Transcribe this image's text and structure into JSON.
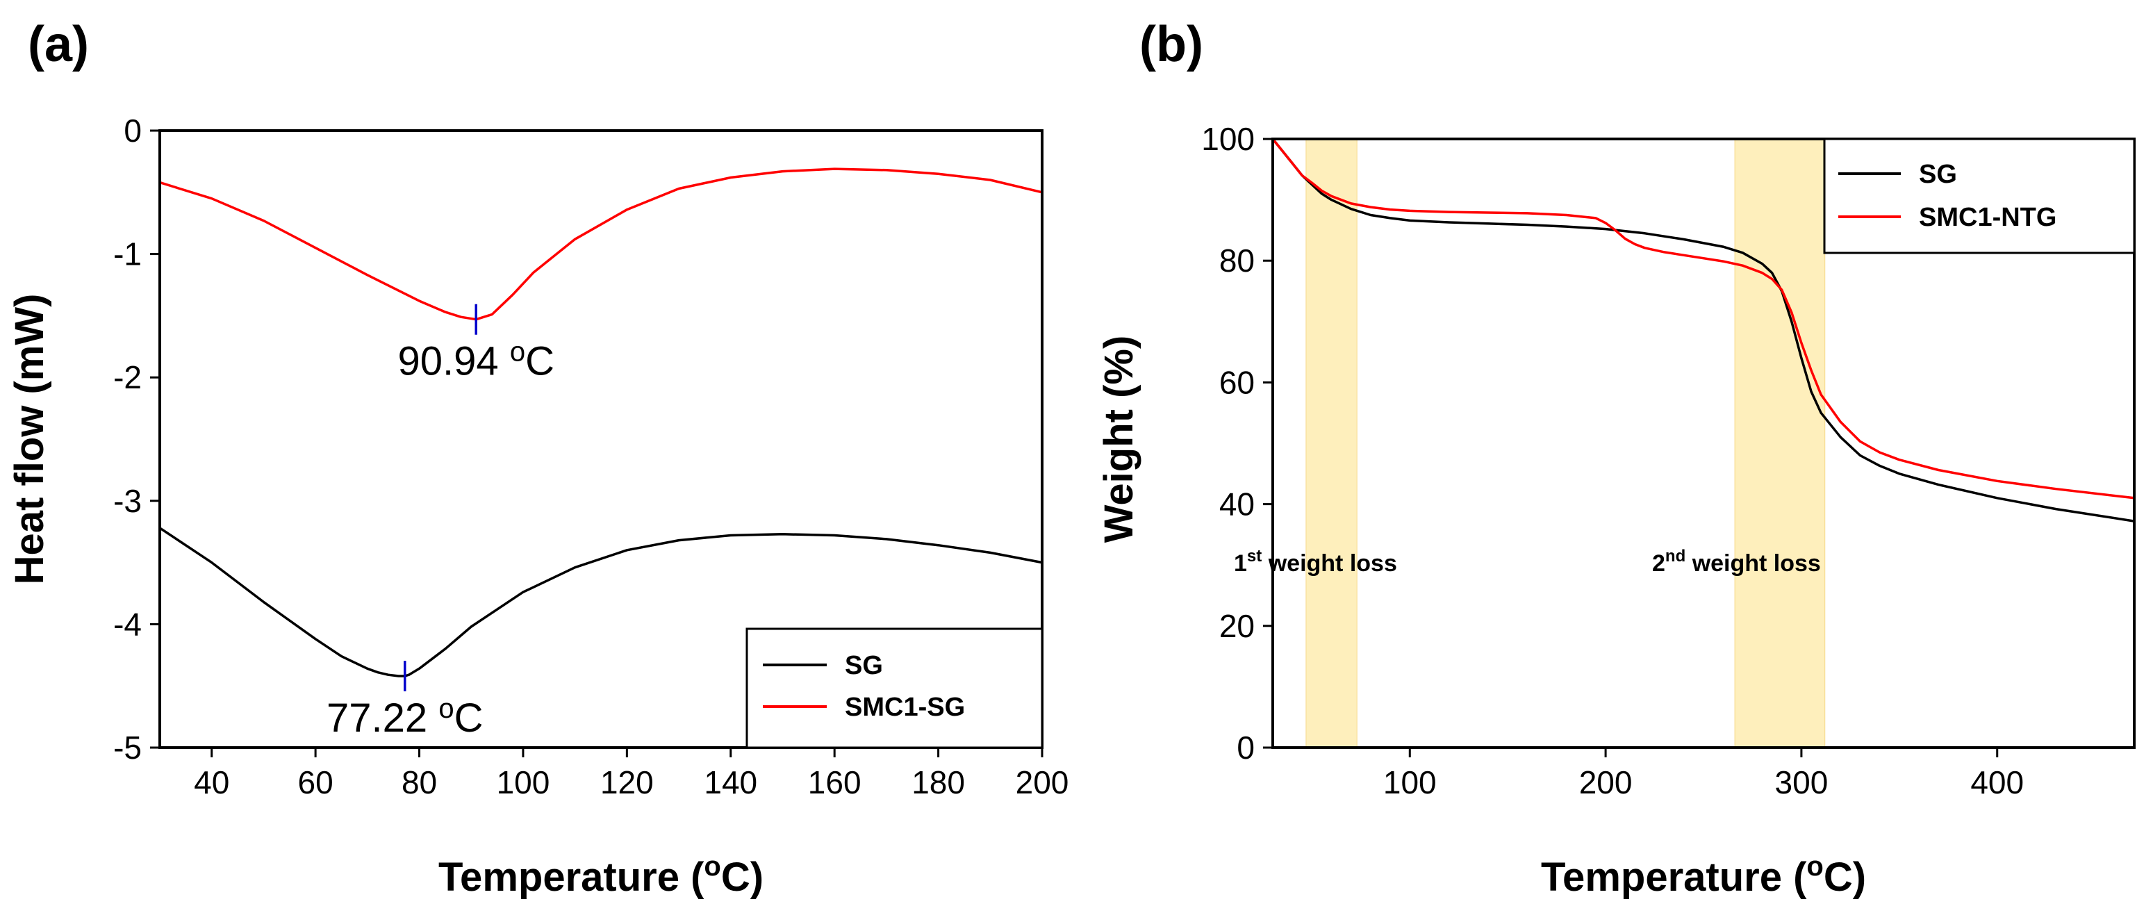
{
  "colors": {
    "black": "#000000",
    "red": "#ff0000",
    "marker": "#0000cc",
    "shade": "#fde9a6"
  },
  "chart_data": [
    {
      "panel_label": "(a)",
      "type": "line",
      "xlabel": "Temperature (oC)",
      "ylabel": "Heat flow (mW)",
      "xlim": [
        30,
        200
      ],
      "ylim": [
        -5,
        0
      ],
      "xticks": [
        "40",
        "60",
        "80",
        "100",
        "120",
        "140",
        "160",
        "180",
        "200"
      ],
      "yticks": [
        "0",
        "-1",
        "-2",
        "-3",
        "-4",
        "-5"
      ],
      "legend_position": "bottom-right",
      "series": [
        {
          "name": "SG",
          "color": "#000000",
          "x": [
            30,
            40,
            50,
            60,
            65,
            70,
            72,
            74,
            76,
            77.22,
            78,
            80,
            85,
            90,
            100,
            110,
            120,
            130,
            140,
            150,
            160,
            170,
            180,
            190,
            200
          ],
          "y": [
            -3.22,
            -3.5,
            -3.82,
            -4.12,
            -4.26,
            -4.36,
            -4.39,
            -4.41,
            -4.42,
            -4.42,
            -4.41,
            -4.36,
            -4.2,
            -4.02,
            -3.74,
            -3.54,
            -3.4,
            -3.32,
            -3.28,
            -3.27,
            -3.28,
            -3.31,
            -3.36,
            -3.42,
            -3.5
          ]
        },
        {
          "name": "SMC1-SG",
          "color": "#ff0000",
          "x": [
            30,
            40,
            50,
            60,
            70,
            80,
            85,
            88,
            90.94,
            94,
            98,
            102,
            110,
            120,
            130,
            140,
            150,
            160,
            170,
            180,
            190,
            200
          ],
          "y": [
            -0.42,
            -0.55,
            -0.73,
            -0.95,
            -1.17,
            -1.38,
            -1.47,
            -1.51,
            -1.53,
            -1.49,
            -1.33,
            -1.15,
            -0.88,
            -0.64,
            -0.47,
            -0.38,
            -0.33,
            -0.31,
            -0.32,
            -0.35,
            -0.4,
            -0.5
          ]
        }
      ],
      "annotations": [
        {
          "x": 90.94,
          "y": -1.53,
          "label": "90.94",
          "unit": "oC"
        },
        {
          "x": 77.22,
          "y": -4.42,
          "label": "77.22",
          "unit": "oC"
        }
      ]
    },
    {
      "panel_label": "(b)",
      "type": "line",
      "xlabel": "Temperature (oC)",
      "ylabel": "Weight (%)",
      "xlim": [
        30,
        470
      ],
      "ylim": [
        0,
        100
      ],
      "xticks": [
        "100",
        "200",
        "300",
        "400"
      ],
      "yticks": [
        "0",
        "20",
        "40",
        "60",
        "80",
        "100"
      ],
      "legend_position": "top-right",
      "series": [
        {
          "name": "SG",
          "color": "#000000",
          "x": [
            30,
            35,
            40,
            45,
            50,
            55,
            60,
            70,
            80,
            90,
            100,
            120,
            140,
            160,
            180,
            200,
            220,
            240,
            260,
            270,
            280,
            285,
            290,
            295,
            300,
            305,
            310,
            320,
            330,
            340,
            350,
            370,
            400,
            430,
            470
          ],
          "y": [
            100,
            98,
            96,
            94,
            92.5,
            91,
            90,
            88.5,
            87.5,
            87,
            86.6,
            86.3,
            86.1,
            85.9,
            85.6,
            85.2,
            84.5,
            83.5,
            82.3,
            81.3,
            79.5,
            78,
            75,
            70,
            64,
            58.5,
            55,
            51,
            48,
            46.3,
            45,
            43.2,
            41,
            39.2,
            37.2
          ]
        },
        {
          "name": "SMC1-NTG",
          "color": "#ff0000",
          "x": [
            30,
            35,
            40,
            45,
            50,
            55,
            60,
            70,
            80,
            90,
            100,
            120,
            140,
            160,
            180,
            195,
            200,
            205,
            210,
            215,
            220,
            230,
            240,
            250,
            260,
            270,
            280,
            285,
            290,
            295,
            300,
            305,
            310,
            320,
            330,
            340,
            350,
            370,
            400,
            430,
            470
          ],
          "y": [
            100,
            98,
            96,
            94,
            92.8,
            91.5,
            90.6,
            89.4,
            88.8,
            88.4,
            88.2,
            88,
            87.9,
            87.8,
            87.5,
            87,
            86.2,
            85,
            83.6,
            82.7,
            82.1,
            81.4,
            80.9,
            80.4,
            79.9,
            79.2,
            78,
            77,
            75.2,
            71.5,
            66.5,
            62,
            58,
            53.5,
            50.3,
            48.5,
            47.3,
            45.6,
            43.8,
            42.5,
            41
          ]
        }
      ],
      "shaded_regions": [
        {
          "x0": 47,
          "x1": 73,
          "label_main": "1",
          "label_sup": "st",
          "label_rest": " weight loss"
        },
        {
          "x0": 266,
          "x1": 312,
          "label_main": "2",
          "label_sup": "nd",
          "label_rest": " weight loss"
        }
      ]
    }
  ]
}
